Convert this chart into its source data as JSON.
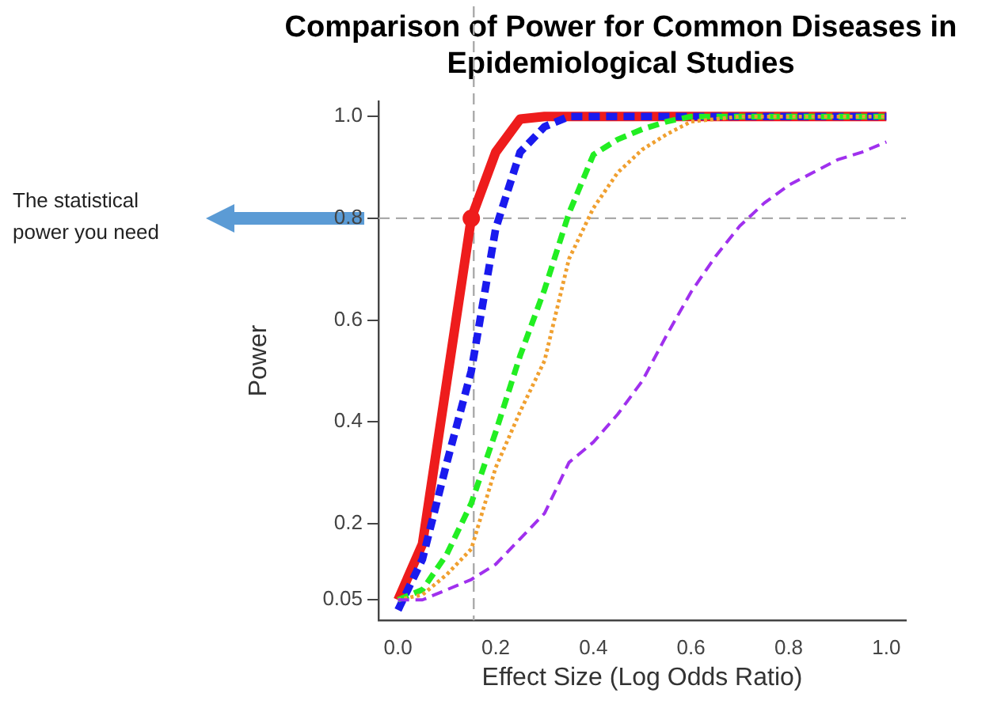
{
  "chart_data": {
    "type": "line",
    "title": "Comparison of Power for Common Diseases in Epidemiological Studies",
    "xlabel": "Effect Size (Log Odds Ratio)",
    "ylabel": "Power",
    "annotations": [
      "The statistical power you need"
    ],
    "x": [
      0,
      0.05,
      0.1,
      0.15,
      0.2,
      0.25,
      0.3,
      0.35,
      0.4,
      0.45,
      0.5,
      0.55,
      0.6,
      0.65,
      0.7,
      0.75,
      0.8,
      0.85,
      0.9,
      0.95,
      1.0
    ],
    "series": [
      {
        "color": "#ee1c1c",
        "line_style": "solid",
        "values": [
          0.05,
          0.16,
          0.48,
          0.8,
          0.93,
          0.995,
          1,
          1,
          1,
          1,
          1,
          1,
          1,
          1,
          1,
          1,
          1,
          1,
          1,
          1,
          1
        ]
      },
      {
        "color": "#1a1aee",
        "line_style": "dashed",
        "values": [
          0.03,
          0.13,
          0.32,
          0.5,
          0.78,
          0.93,
          0.98,
          1,
          1,
          1,
          1,
          1,
          1,
          1,
          1,
          1,
          1,
          1,
          1,
          1,
          1
        ]
      },
      {
        "color": "#22ee22",
        "line_style": "dashed",
        "values": [
          0.05,
          0.07,
          0.14,
          0.24,
          0.38,
          0.53,
          0.66,
          0.81,
          0.925,
          0.955,
          0.975,
          0.99,
          1,
          1,
          1,
          1,
          1,
          1,
          1,
          1,
          1
        ]
      },
      {
        "color": "#f0a030",
        "line_style": "dotted",
        "values": [
          0.05,
          0.06,
          0.1,
          0.15,
          0.31,
          0.42,
          0.52,
          0.72,
          0.82,
          0.89,
          0.935,
          0.965,
          0.99,
          0.995,
          1,
          1,
          1,
          1,
          1,
          1,
          1
        ]
      },
      {
        "color": "#a030ee",
        "line_style": "dashed",
        "values": [
          0.05,
          0.05,
          0.07,
          0.09,
          0.12,
          0.17,
          0.22,
          0.32,
          0.36,
          0.415,
          0.48,
          0.57,
          0.655,
          0.725,
          0.785,
          0.83,
          0.865,
          0.89,
          0.915,
          0.93,
          0.95
        ]
      },
      {
        "type": "scatter",
        "color": "#ee1c1c",
        "marker": "circle",
        "x": [
          0.15
        ],
        "values": [
          0.8
        ]
      }
    ],
    "xlim": [
      -0.04,
      1.04
    ],
    "ylim": [
      0.01,
      1.03
    ],
    "xticks": [
      {
        "value": 0,
        "label": "0.0"
      },
      0.2,
      0.4,
      0.6,
      0.8,
      {
        "value": 1,
        "label": "1.0"
      }
    ],
    "yticks": [
      0.05,
      0.2,
      0.4,
      0.6,
      0.8,
      {
        "value": 1,
        "label": "1.0"
      }
    ],
    "ref_lines": [
      {
        "axis": "x",
        "value": 0.155,
        "color": "#aaaaaa",
        "line_style": "dashed"
      },
      {
        "axis": "y",
        "value": 0.8,
        "color": "#aaaaaa",
        "line_style": "dashed"
      }
    ],
    "grid": false,
    "legend": false
  }
}
